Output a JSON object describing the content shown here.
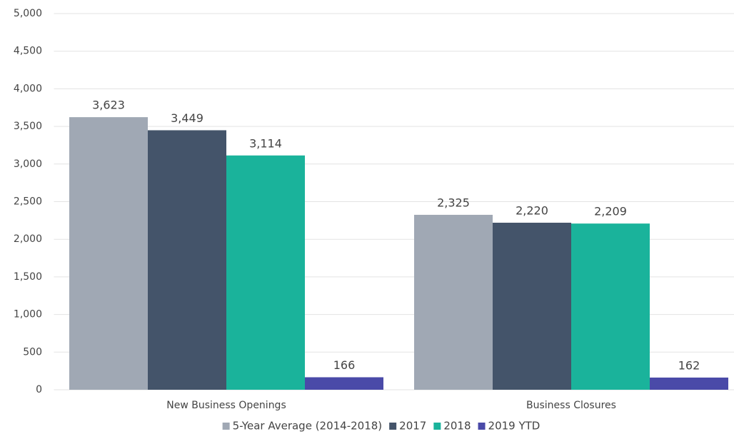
{
  "chart_data": {
    "type": "bar",
    "categories": [
      "New Business Openings",
      "Business Closures"
    ],
    "series": [
      {
        "name": "5-Year Average (2014-2018)",
        "color": "#a0a8b4",
        "values": [
          3623,
          2325
        ],
        "value_labels": [
          "3,623",
          "2,325"
        ]
      },
      {
        "name": "2017",
        "color": "#44546a",
        "values": [
          3449,
          2220
        ],
        "value_labels": [
          "3,449",
          "2,220"
        ]
      },
      {
        "name": "2018",
        "color": "#1ab39b",
        "values": [
          3114,
          2209
        ],
        "value_labels": [
          "3,114",
          "2,209"
        ]
      },
      {
        "name": "2019 YTD",
        "color": "#4a4aa8",
        "values": [
          166,
          162
        ]
      }
    ],
    "ylim": [
      0,
      5000
    ],
    "yticks": [
      0,
      500,
      {
        "value": 1000,
        "label": "1,000"
      },
      {
        "value": 1500,
        "label": "1,500"
      },
      {
        "value": 2000,
        "label": "2,000"
      },
      {
        "value": 2500,
        "label": "2,500"
      },
      {
        "value": 3000,
        "label": "3,000"
      },
      {
        "value": 3500,
        "label": "3,500"
      },
      {
        "value": 4000,
        "label": "4,000"
      },
      {
        "value": 4500,
        "label": "4,500"
      },
      {
        "value": 5000,
        "label": "5,000"
      }
    ],
    "grid": true,
    "legend": "bottom"
  }
}
